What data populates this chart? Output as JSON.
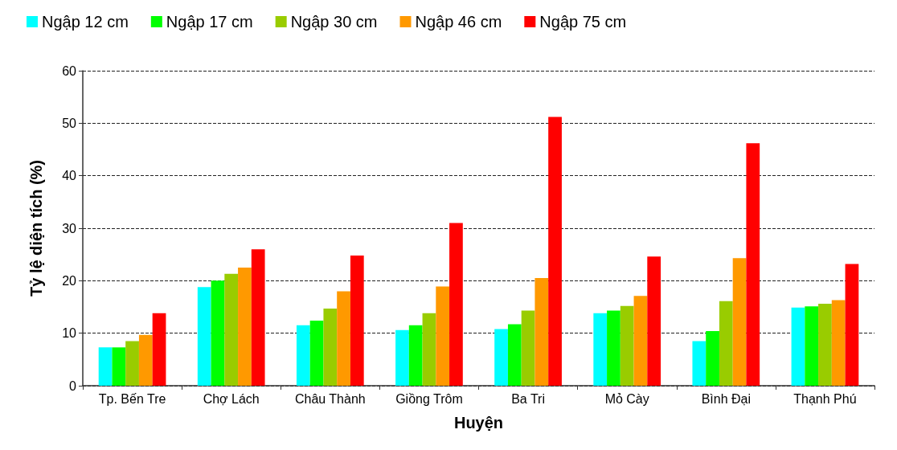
{
  "chart_data": {
    "type": "bar",
    "xlabel": "Huyện",
    "ylabel": "Tỷ lệ diện tích (%)",
    "categories": [
      "Tp. Bến Tre",
      "Chợ Lách",
      "Châu Thành",
      "Giồng Trôm",
      "Ba Tri",
      "Mỏ Cày",
      "Bình Đại",
      "Thạnh Phú"
    ],
    "series": [
      {
        "name": "Ngập 12 cm",
        "color": "#00ffff",
        "values": [
          7.3,
          18.8,
          11.5,
          10.6,
          10.8,
          13.8,
          8.5,
          14.9
        ]
      },
      {
        "name": "Ngập 17 cm",
        "color": "#00ff00",
        "values": [
          7.3,
          20,
          12.4,
          11.5,
          11.7,
          14.3,
          10.4,
          15.1
        ]
      },
      {
        "name": "Ngập 30 cm",
        "color": "#99cc00",
        "values": [
          8.5,
          21.3,
          14.7,
          13.8,
          14.3,
          15.2,
          16.1,
          15.6
        ]
      },
      {
        "name": "Ngập 46 cm",
        "color": "#ff9900",
        "values": [
          9.7,
          22.5,
          18,
          18.9,
          20.5,
          17.1,
          24.3,
          16.3
        ]
      },
      {
        "name": "Ngập 75 cm",
        "color": "#ff0000",
        "values": [
          13.8,
          26,
          24.8,
          31,
          51.2,
          24.6,
          46.2,
          23.2
        ]
      }
    ],
    "ylim": [
      0,
      60
    ],
    "yticks": [
      0,
      10,
      20,
      30,
      40,
      50,
      60
    ],
    "grid": "y",
    "legend": "top",
    "line_style": "dashed"
  }
}
